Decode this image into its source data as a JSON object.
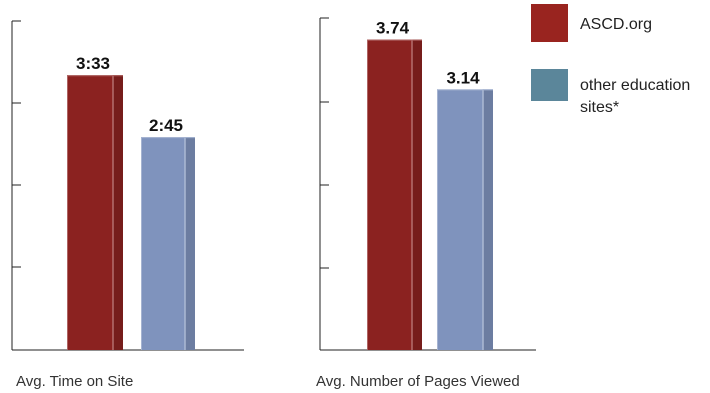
{
  "chart_data": [
    {
      "type": "bar",
      "categories": [
        "ASCD.org",
        "other education sites*"
      ],
      "values": [
        213,
        165
      ],
      "value_labels": [
        "3:33",
        "2:45"
      ],
      "xlabel": "Avg. Time on Site",
      "ylabel": "",
      "ylim": [
        0,
        255
      ],
      "grid": false
    },
    {
      "type": "bar",
      "categories": [
        "ASCD.org",
        "other education sites*"
      ],
      "values": [
        3.74,
        3.14
      ],
      "value_labels": [
        "3.74",
        "3.14"
      ],
      "xlabel": "Avg. Number of Pages Viewed",
      "ylabel": "",
      "ylim": [
        0,
        4.0
      ],
      "grid": false
    }
  ],
  "legend": {
    "placement": "top-right",
    "items": [
      {
        "label": "ASCD.org",
        "color": "#99241f"
      },
      {
        "label_lines": [
          "other education",
          "sites*"
        ],
        "color": "#5b869a"
      }
    ]
  },
  "colors": {
    "series_a": "#8b2220",
    "series_b": "#7f93bd",
    "axis": "#222222"
  }
}
